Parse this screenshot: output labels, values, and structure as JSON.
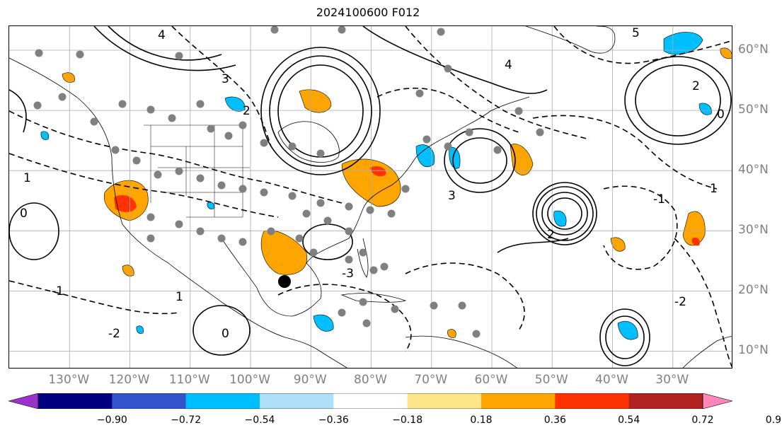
{
  "title": "2024100600 F012",
  "lon_labels": [
    {
      "lon": -130,
      "text": "130°W"
    },
    {
      "lon": -120,
      "text": "120°W"
    },
    {
      "lon": -110,
      "text": "110°W"
    },
    {
      "lon": -100,
      "text": "100°W"
    },
    {
      "lon": -90,
      "text": "90°W"
    },
    {
      "lon": -80,
      "text": "80°W"
    },
    {
      "lon": -70,
      "text": "70°W"
    },
    {
      "lon": -60,
      "text": "60°W"
    },
    {
      "lon": -50,
      "text": "50°W"
    },
    {
      "lon": -40,
      "text": "40°W"
    },
    {
      "lon": -30,
      "text": "30°W"
    }
  ],
  "lat_labels": [
    {
      "lat": 60,
      "text": "60°N"
    },
    {
      "lat": 50,
      "text": "50°N"
    },
    {
      "lat": 40,
      "text": "40°N"
    },
    {
      "lat": 30,
      "text": "30°N"
    },
    {
      "lat": 20,
      "text": "20°N"
    },
    {
      "lat": 10,
      "text": "10°N"
    }
  ],
  "colorbar": {
    "ticks": [
      "−0.90",
      "−0.72",
      "−0.54",
      "−0.36",
      "−0.18",
      "0.18",
      "0.36",
      "0.54",
      "0.72",
      "0.90"
    ],
    "colors": [
      "#9933cc",
      "#000080",
      "#3355cc",
      "#00bfff",
      "#aee0fa",
      "#ffffff",
      "#fde68a",
      "#ffa500",
      "#ff3300",
      "#b22222",
      "#ff88bb"
    ]
  },
  "contour_labels": [
    "4",
    "3",
    "2",
    "1",
    "0",
    "-1",
    "-2",
    "-3",
    "4",
    "5",
    "2",
    "1",
    "0",
    "-1",
    "-2",
    "3",
    "2",
    "1",
    "0"
  ],
  "icons": {
    "marker": "large-black-dot",
    "stations": "gray-station-dots"
  }
}
